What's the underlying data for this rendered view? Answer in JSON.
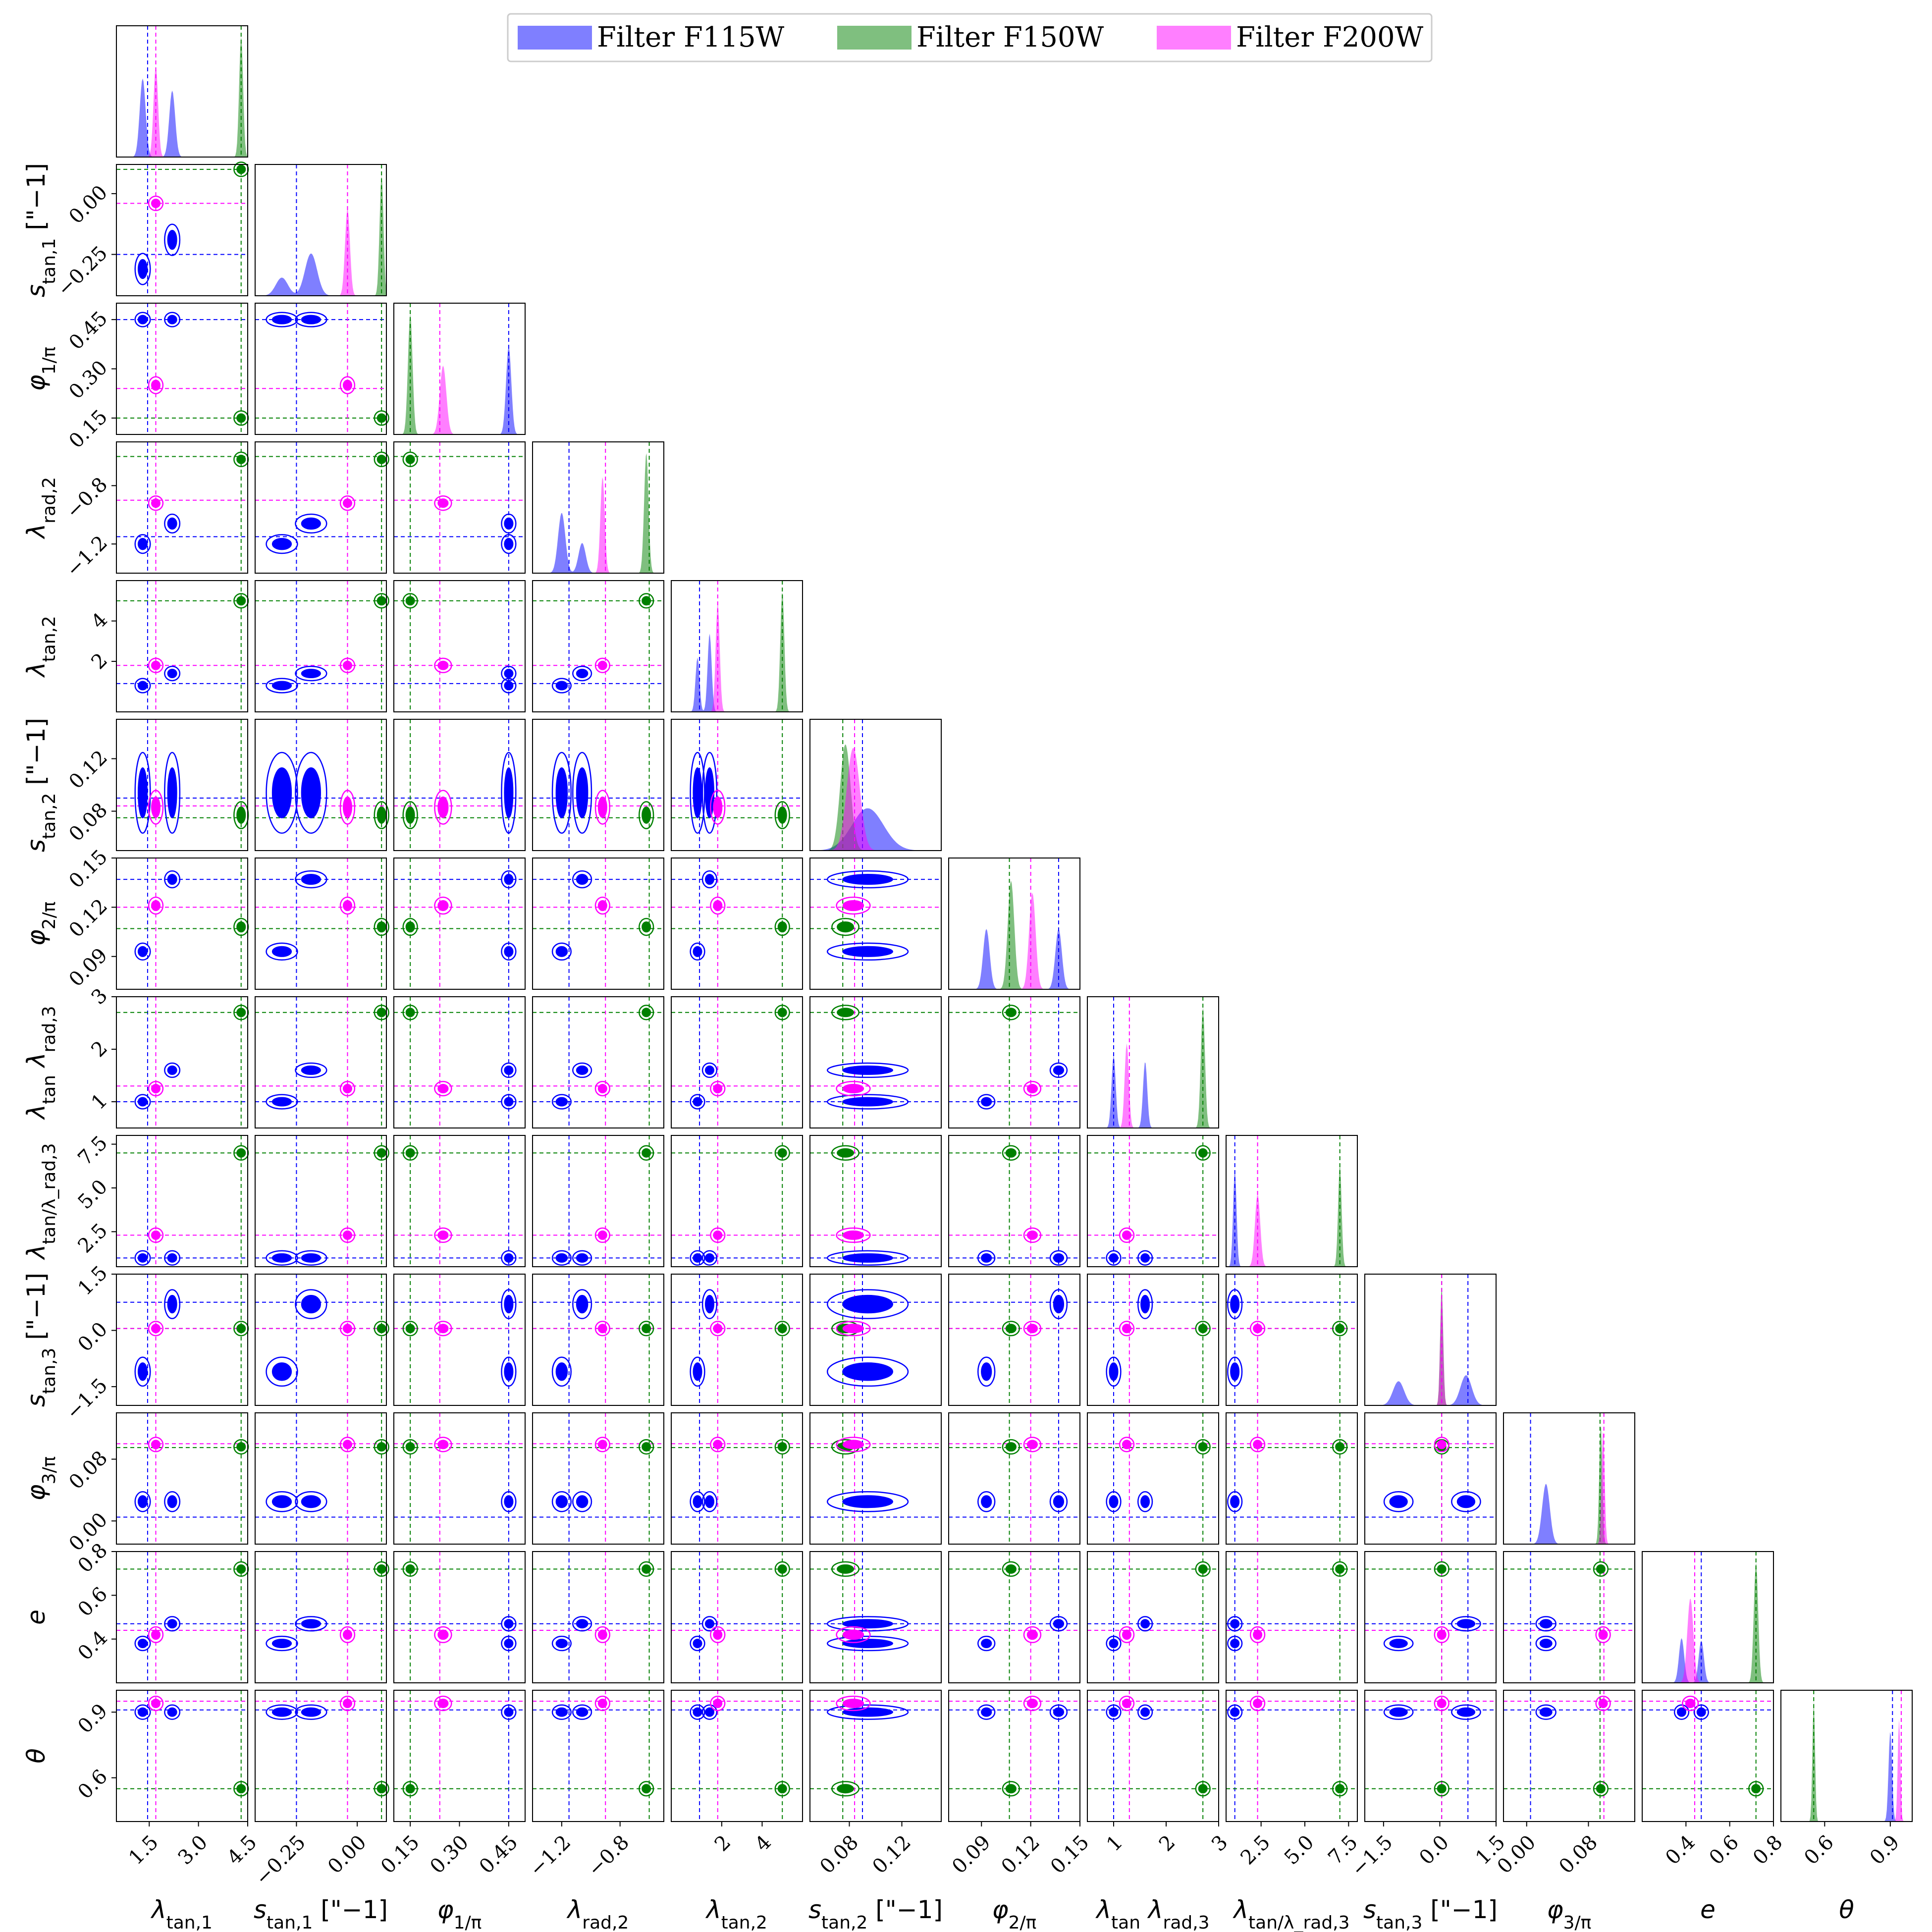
{
  "chart_data": {
    "type": "corner",
    "legend": {
      "placement": "top-center",
      "entries": [
        {
          "label": "Filter F115W",
          "color": "#0000ff"
        },
        {
          "label": "Filter F150W",
          "color": "#008000"
        },
        {
          "label": "Filter F200W",
          "color": "#ff00ff"
        }
      ]
    },
    "parameters": [
      {
        "label": "λ_tan,1",
        "range": [
          0.5,
          4.5
        ],
        "ticks": [
          1.5,
          3.0,
          4.5
        ],
        "tick_labels": [
          "1.5",
          "3.0",
          "4.5"
        ],
        "truth": {
          "F115W": 1.45,
          "F150W": 4.3,
          "F200W": 1.7
        },
        "mean": {
          "F115W": [
            1.3,
            2.2
          ],
          "F150W": 4.3,
          "F200W": 1.7
        },
        "sd": {
          "F115W": 0.09,
          "F150W": 0.06,
          "F200W": 0.07
        },
        "peaks": {
          "F115W": [
            0.65,
            0.55
          ],
          "F150W": 1.0,
          "F200W": 0.75
        }
      },
      {
        "label": "s_tan,1 [\"−1]",
        "range": [
          -0.42,
          0.12
        ],
        "ticks": [
          -0.25,
          0.0
        ],
        "tick_labels": [
          "−0.25",
          "0.00"
        ],
        "truth": {
          "F115W": -0.25,
          "F150W": 0.1,
          "F200W": -0.04
        },
        "mean": {
          "F115W": [
            -0.31,
            -0.19
          ],
          "F150W": 0.1,
          "F200W": -0.04
        },
        "sd": {
          "F115W": 0.025,
          "F150W": 0.008,
          "F200W": 0.01
        },
        "peaks": {
          "F115W": [
            0.15,
            0.35
          ],
          "F150W": 1.0,
          "F200W": 0.72
        }
      },
      {
        "label": "φ_1/π",
        "range": [
          0.1,
          0.5
        ],
        "ticks": [
          0.15,
          0.3,
          0.45
        ],
        "tick_labels": [
          "0.15",
          "0.30",
          "0.45"
        ],
        "truth": {
          "F115W": 0.45,
          "F150W": 0.15,
          "F200W": 0.24
        },
        "mean": {
          "F115W": 0.45,
          "F150W": 0.15,
          "F200W": 0.25
        },
        "sd": {
          "F115W": 0.008,
          "F150W": 0.007,
          "F200W": 0.01
        },
        "peaks": {
          "F115W": 0.73,
          "F150W": 1.0,
          "F200W": 0.57
        }
      },
      {
        "label": "λ_rad,2",
        "range": [
          -1.4,
          -0.5
        ],
        "ticks": [
          -1.2,
          -0.8
        ],
        "tick_labels": [
          "−1.2",
          "−0.8"
        ],
        "truth": {
          "F115W": -1.15,
          "F150W": -0.6,
          "F200W": -0.9
        },
        "mean": {
          "F115W": [
            -1.2,
            -1.06
          ],
          "F150W": -0.62,
          "F200W": -0.92
        },
        "sd": {
          "F115W": 0.025,
          "F150W": 0.015,
          "F200W": 0.015
        },
        "peaks": {
          "F115W": [
            0.5,
            0.25
          ],
          "F150W": 1.0,
          "F200W": 0.8
        }
      },
      {
        "label": "λ_tan,2",
        "range": [
          -0.5,
          6.0
        ],
        "ticks": [
          2,
          4
        ],
        "tick_labels": [
          "2",
          "4"
        ],
        "truth": {
          "F115W": 0.9,
          "F150W": 5.0,
          "F200W": 1.8
        },
        "mean": {
          "F115W": [
            0.8,
            1.4
          ],
          "F150W": 5.0,
          "F200W": 1.8
        },
        "sd": {
          "F115W": 0.1,
          "F150W": 0.1,
          "F200W": 0.1
        },
        "peaks": {
          "F115W": [
            0.45,
            0.65
          ],
          "F150W": 1.0,
          "F200W": 0.9
        }
      },
      {
        "label": "s_tan,2 [\"−1]",
        "range": [
          0.05,
          0.15
        ],
        "ticks": [
          0.08,
          0.12
        ],
        "tick_labels": [
          "0.08",
          "0.12"
        ],
        "truth": {
          "F115W": 0.09,
          "F150W": 0.075,
          "F200W": 0.084
        },
        "mean": {
          "F115W": 0.094,
          "F150W": 0.077,
          "F200W": 0.083
        },
        "sd": {
          "F115W": 0.012,
          "F150W": 0.004,
          "F200W": 0.005
        },
        "peaks": {
          "F115W": 0.35,
          "F150W": 0.88,
          "F200W": 0.85
        }
      },
      {
        "label": "φ_2/π",
        "range": [
          0.07,
          0.15
        ],
        "ticks": [
          0.09,
          0.12,
          0.15
        ],
        "tick_labels": [
          "0.09",
          "0.12",
          "0.15"
        ],
        "truth": {
          "F115W": 0.137,
          "F150W": 0.107,
          "F200W": 0.12
        },
        "mean": {
          "F115W": [
            0.093,
            0.137
          ],
          "F150W": 0.108,
          "F200W": 0.121
        },
        "sd": {
          "F115W": 0.002,
          "F150W": 0.002,
          "F200W": 0.002
        },
        "peaks": {
          "F115W": [
            0.5,
            0.5
          ],
          "F150W": 0.9,
          "F200W": 0.8
        }
      },
      {
        "label": "λ_tan λ_rad,3",
        "range": [
          0.5,
          3.0
        ],
        "ticks": [
          1,
          2,
          3
        ],
        "tick_labels": [
          "1",
          "2",
          "3"
        ],
        "truth": {
          "F115W": 1.0,
          "F150W": 2.7,
          "F200W": 1.3
        },
        "mean": {
          "F115W": [
            1.0,
            1.6
          ],
          "F150W": 2.7,
          "F200W": 1.25
        },
        "sd": {
          "F115W": 0.04,
          "F150W": 0.04,
          "F200W": 0.04
        },
        "peaks": {
          "F115W": [
            0.6,
            0.55
          ],
          "F150W": 1.0,
          "F200W": 0.7
        }
      },
      {
        "label": "λ_tan/λ_rad,3",
        "range": [
          0.5,
          8.0
        ],
        "ticks": [
          2.5,
          5.0,
          7.5
        ],
        "tick_labels": [
          "2.5",
          "5.0",
          "7.5"
        ],
        "truth": {
          "F115W": 1.0,
          "F150W": 7.0,
          "F200W": 2.3
        },
        "mean": {
          "F115W": 1.0,
          "F150W": 7.0,
          "F200W": 2.3
        },
        "sd": {
          "F115W": 0.1,
          "F150W": 0.1,
          "F200W": 0.15
        },
        "peaks": {
          "F115W": 0.8,
          "F150W": 0.85,
          "F200W": 0.6
        }
      },
      {
        "label": "s_tan,3 [\"−1]",
        "range": [
          -2.0,
          1.5
        ],
        "ticks": [
          -1.5,
          0.0,
          1.5
        ],
        "tick_labels": [
          "−1.5",
          "0.0",
          "1.5"
        ],
        "truth": {
          "F115W": 0.75,
          "F150W": 0.05,
          "F200W": 0.05
        },
        "mean": {
          "F115W": [
            -1.1,
            0.7
          ],
          "F150W": 0.05,
          "F200W": 0.05
        },
        "sd": {
          "F115W": 0.15,
          "F150W": 0.04,
          "F200W": 0.04
        },
        "peaks": {
          "F115W": [
            0.2,
            0.25
          ],
          "F150W": 1.0,
          "F200W": 0.95
        }
      },
      {
        "label": "φ_3/π",
        "range": [
          -0.03,
          0.14
        ],
        "ticks": [
          0.0,
          0.08
        ],
        "tick_labels": [
          "0.00",
          "0.08"
        ],
        "truth": {
          "F115W": 0.005,
          "F150W": 0.095,
          "F200W": 0.1
        },
        "mean": {
          "F115W": 0.025,
          "F150W": 0.096,
          "F200W": 0.099
        },
        "sd": {
          "F115W": 0.005,
          "F150W": 0.002,
          "F200W": 0.002
        },
        "peaks": {
          "F115W": 0.5,
          "F150W": 1.0,
          "F200W": 0.95
        }
      },
      {
        "label": "e",
        "range": [
          0.2,
          0.8
        ],
        "ticks": [
          0.4,
          0.6,
          0.8
        ],
        "tick_labels": [
          "0.4",
          "0.6",
          "0.8"
        ],
        "truth": {
          "F115W": 0.47,
          "F150W": 0.72,
          "F200W": 0.44
        },
        "mean": {
          "F115W": [
            0.38,
            0.47
          ],
          "F150W": 0.72,
          "F200W": 0.42
        },
        "sd": {
          "F115W": 0.012,
          "F150W": 0.01,
          "F200W": 0.014
        },
        "peaks": {
          "F115W": [
            0.37,
            0.35
          ],
          "F150W": 1.0,
          "F200W": 0.7
        }
      },
      {
        "label": "θ",
        "range": [
          0.4,
          1.0
        ],
        "ticks": [
          0.6,
          0.9
        ],
        "tick_labels": [
          "0.6",
          "0.9"
        ],
        "truth": {
          "F115W": 0.91,
          "F150W": 0.55,
          "F200W": 0.95
        },
        "mean": {
          "F115W": 0.9,
          "F150W": 0.55,
          "F200W": 0.94
        },
        "sd": {
          "F115W": 0.008,
          "F150W": 0.006,
          "F200W": 0.006
        },
        "peaks": {
          "F115W": 0.75,
          "F150W": 1.0,
          "F200W": 0.85
        }
      }
    ]
  }
}
